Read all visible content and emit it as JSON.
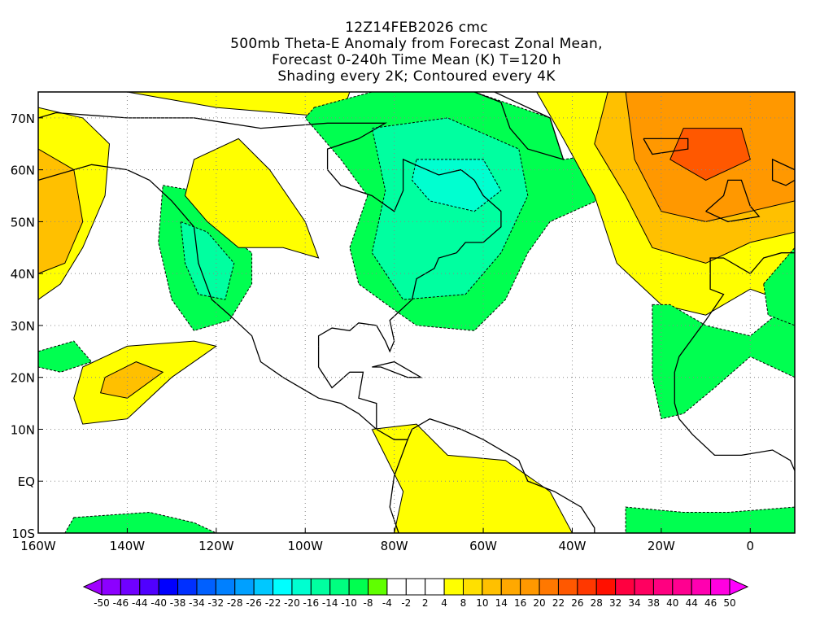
{
  "title": {
    "line1": "12Z14FEB2026 cmc",
    "line2": "500mb Theta-E Anomaly from Forecast Zonal Mean,",
    "line3": "Forecast 0-240h Time Mean (K) T=120 h",
    "line4": "Shading every 2K; Contoured every 4K"
  },
  "map": {
    "lon_range": [
      -160,
      10
    ],
    "lat_range": [
      -10,
      75
    ],
    "x_ticks": [
      {
        "lon": -160,
        "label": "160W"
      },
      {
        "lon": -140,
        "label": "140W"
      },
      {
        "lon": -120,
        "label": "120W"
      },
      {
        "lon": -100,
        "label": "100W"
      },
      {
        "lon": -80,
        "label": "80W"
      },
      {
        "lon": -60,
        "label": "60W"
      },
      {
        "lon": -40,
        "label": "40W"
      },
      {
        "lon": -20,
        "label": "20W"
      },
      {
        "lon": 0,
        "label": "0"
      }
    ],
    "y_ticks": [
      {
        "lat": 70,
        "label": "70N"
      },
      {
        "lat": 60,
        "label": "60N"
      },
      {
        "lat": 50,
        "label": "50N"
      },
      {
        "lat": 40,
        "label": "40N"
      },
      {
        "lat": 30,
        "label": "30N"
      },
      {
        "lat": 20,
        "label": "20N"
      },
      {
        "lat": 10,
        "label": "10N"
      },
      {
        "lat": 0,
        "label": "EQ"
      },
      {
        "lat": -10,
        "label": "10S"
      }
    ]
  },
  "colorbar": {
    "labels": [
      "-50",
      "-46",
      "-44",
      "-40",
      "-38",
      "-34",
      "-32",
      "-28",
      "-26",
      "-22",
      "-20",
      "-16",
      "-14",
      "-10",
      "-8",
      "-4",
      "-2",
      "2",
      "4",
      "8",
      "10",
      "14",
      "16",
      "20",
      "22",
      "26",
      "28",
      "32",
      "34",
      "38",
      "40",
      "44",
      "46",
      "50"
    ],
    "low_arrow_color": "#a000ff",
    "high_arrow_color": "#ff00ff",
    "colors": [
      "#8c00ff",
      "#7000ff",
      "#5000ff",
      "#0000ff",
      "#0030ff",
      "#0060ff",
      "#0080ff",
      "#00a0ff",
      "#00c8ff",
      "#00ffff",
      "#00ffd0",
      "#00ffa0",
      "#00ff80",
      "#00ff50",
      "#60ff00",
      "#ffffff",
      "#ffffff",
      "#ffffff",
      "#ffff00",
      "#ffe000",
      "#ffc000",
      "#ffa800",
      "#ff9800",
      "#ff7800",
      "#ff5800",
      "#ff3800",
      "#ff1000",
      "#ff0040",
      "#ff0060",
      "#ff0080",
      "#ff0090",
      "#ff00b0",
      "#ff00e0"
    ]
  }
}
